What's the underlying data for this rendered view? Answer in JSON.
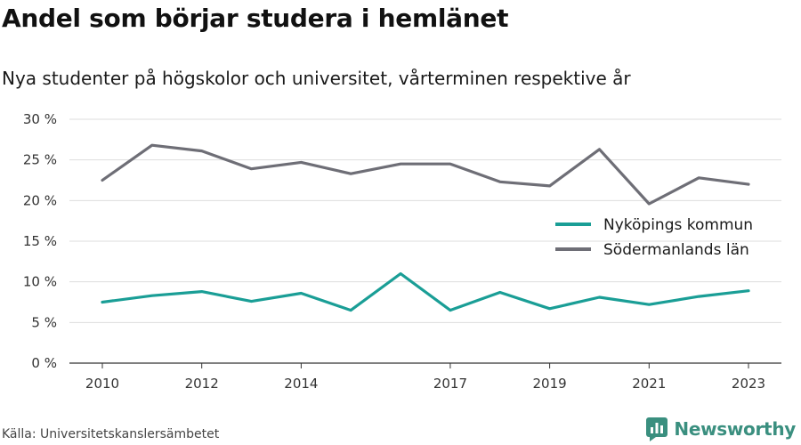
{
  "title": "Andel som börjar studera i hemlänet",
  "subtitle": "Nya studenter på högskolor och universitet, vårterminen respektive år",
  "source": "Källa: Universitetskanslersämbetet",
  "brand": {
    "name": "Newsworthy",
    "icon": "newsworthy-logo-icon"
  },
  "colors": {
    "series_1": "#1a9e96",
    "series_2": "#6e6e76",
    "grid": "#dddddd",
    "axis": "#333333",
    "brand": "#3a8f7f"
  },
  "chart_data": {
    "type": "line",
    "x": [
      2010,
      2011,
      2012,
      2013,
      2014,
      2015,
      2016,
      2017,
      2018,
      2019,
      2020,
      2021,
      2022,
      2023
    ],
    "x_tick_labels": [
      "2010",
      "2012",
      "2014",
      "2017",
      "2019",
      "2021",
      "2023"
    ],
    "xlim": [
      2010,
      2023
    ],
    "ylim": [
      0,
      30
    ],
    "y_ticks": [
      0,
      5,
      10,
      15,
      20,
      25,
      30
    ],
    "y_tick_labels": [
      "0 %",
      "5 %",
      "10 %",
      "15 %",
      "20 %",
      "25 %",
      "30 %"
    ],
    "grid": true,
    "legend_position": "right",
    "series": [
      {
        "name": "Nyköpings kommun",
        "values": [
          7.5,
          8.3,
          8.8,
          7.6,
          8.6,
          6.5,
          11.0,
          6.5,
          8.7,
          6.7,
          8.1,
          7.2,
          8.2,
          8.9
        ]
      },
      {
        "name": "Södermanlands län",
        "values": [
          22.5,
          26.8,
          26.1,
          23.9,
          24.7,
          23.3,
          24.5,
          24.5,
          22.3,
          21.8,
          26.3,
          19.6,
          22.8,
          22.0
        ]
      }
    ]
  }
}
